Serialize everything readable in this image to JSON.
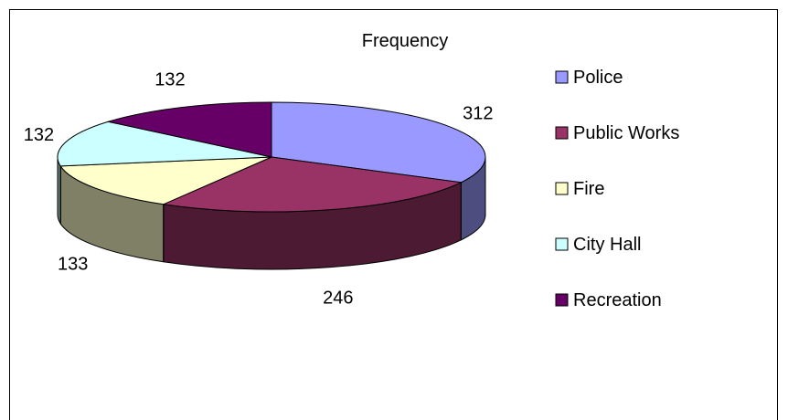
{
  "chart_data": {
    "type": "pie",
    "title": "Frequency",
    "categories": [
      "Police",
      "Public Works",
      "Fire",
      "City Hall",
      "Recreation"
    ],
    "values": [
      312,
      246,
      133,
      132,
      132
    ],
    "colors": [
      "#9999ff",
      "#993366",
      "#ffffcc",
      "#ccffff",
      "#660066"
    ],
    "side_colors": [
      "#4d4d80",
      "#4d1a33",
      "#808066",
      "#668080",
      "#330033"
    ],
    "legend": "right",
    "style": "3d"
  }
}
